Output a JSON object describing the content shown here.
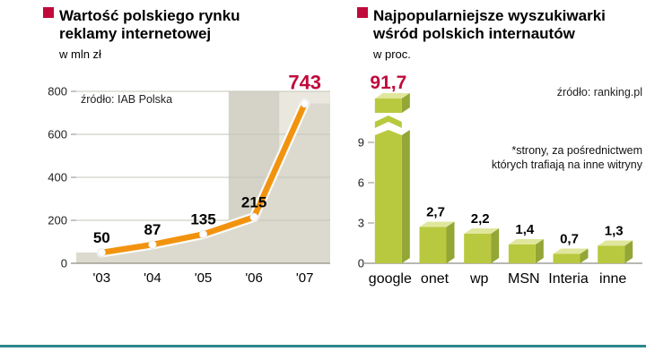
{
  "colors": {
    "accent": "#c00a3c",
    "line": "#f2930f",
    "marker": "#ffffff",
    "area": "#dcdacf",
    "band_06": "#d5d3c8",
    "band_07": "#e9e7de",
    "grid": "#c4c4ba",
    "axis": "#8e8e85",
    "bar_front": "#b9c93f",
    "bar_top": "#e0e79c",
    "bar_side": "#93a636",
    "divider": "#2d878a",
    "text": "#000000"
  },
  "chart_data": [
    {
      "type": "line",
      "title_lines": [
        "Wartość polskiego rynku",
        "reklamy internetowej"
      ],
      "subtitle": "w mln zł",
      "source": "źródło: IAB Polska",
      "categories": [
        "'03",
        "'04",
        "'05",
        "'06",
        "'07"
      ],
      "values": [
        50,
        87,
        135,
        215,
        743
      ],
      "value_labels": [
        "50",
        "87",
        "135",
        "215",
        "743"
      ],
      "highlight_index": 4,
      "xlabel": "",
      "ylabel": "w mln zł",
      "ylim": [
        0,
        800
      ],
      "yticks": [
        0,
        200,
        400,
        600,
        800
      ],
      "grid": true,
      "legend": "none"
    },
    {
      "type": "bar",
      "title_lines": [
        "Najpopularniejsze wyszukiwarki",
        "wśród polskich internautów"
      ],
      "subtitle": "w proc.",
      "source": "źródło: ranking.pl",
      "note_lines": [
        "*strony, za pośrednictwem",
        "których trafiają na inne witryny"
      ],
      "categories": [
        "google",
        "onet",
        "wp",
        "MSN",
        "Interia",
        "inne"
      ],
      "values": [
        91.7,
        2.7,
        2.2,
        1.4,
        0.7,
        1.3
      ],
      "value_labels": [
        "91,7",
        "2,7",
        "2,2",
        "1,4",
        "0,7",
        "1,3"
      ],
      "highlight_index": 0,
      "broken_bar_index": 0,
      "xlabel": "",
      "ylabel": "w proc.",
      "ylim": [
        0,
        10
      ],
      "yticks": [
        0,
        3,
        6,
        9
      ],
      "grid": false,
      "legend": "none"
    }
  ]
}
